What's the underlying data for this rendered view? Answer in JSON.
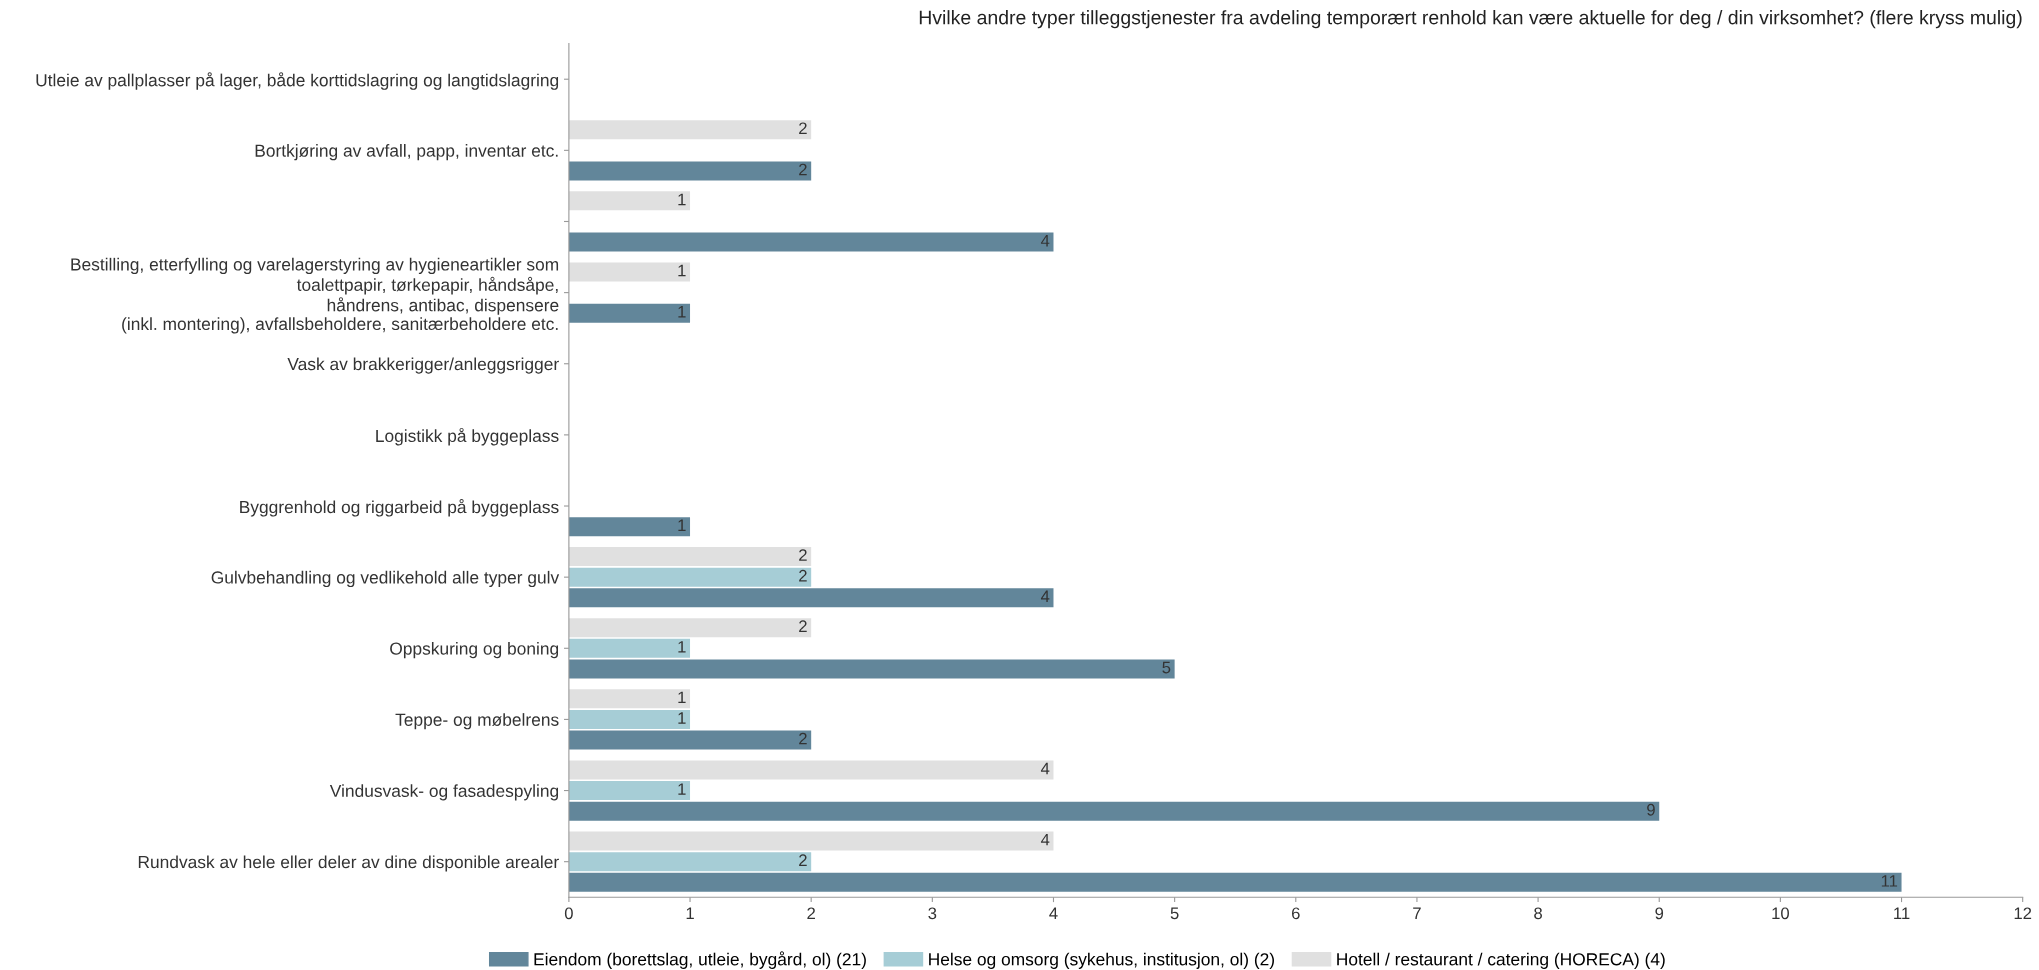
{
  "chart_data": {
    "type": "bar",
    "orientation": "horizontal",
    "title": "Hvilke andre typer tilleggstjenester fra avdeling temporært renhold kan være aktuelle for deg / din virksomhet? (flere kryss mulig)",
    "categories": [
      "Utleie av pallplasser på lager, både korttidslagring og langtidslagring",
      "Bortkjøring av avfall, papp, inventar etc.",
      null,
      "Bestilling, etterfylling og varelagerstyring av hygieneartikler som\ntoalettpapir, tørkepapir, håndsåpe,\nhåndrens, antibac, dispensere\n(inkl. montering), avfallsbeholdere, sanitærbeholdere etc.",
      "Vask av brakkerigger/anleggsrigger",
      "Logistikk på byggeplass",
      "Byggrenhold og riggarbeid på byggeplass",
      "Gulvbehandling og vedlikehold alle typer gulv",
      "Oppskuring og boning",
      "Teppe- og møbelrens",
      "Vindusvask- og fasadespyling",
      "Rundvask av hele eller deler av dine disponible arealer"
    ],
    "series": [
      {
        "name": "Eiendom (borettslag, utleie, bygård, ol) (21)",
        "color": "#62869a",
        "values": [
          null,
          2,
          4,
          1,
          null,
          null,
          1,
          4,
          5,
          2,
          9,
          11
        ]
      },
      {
        "name": "Helse og omsorg (sykehus, institusjon, ol) (2)",
        "color": "#a6cdd6",
        "values": [
          null,
          null,
          null,
          null,
          null,
          null,
          null,
          2,
          1,
          1,
          1,
          2
        ]
      },
      {
        "name": "Hotell / restaurant / catering (HORECA) (4)",
        "color": "#e0e0e0",
        "values": [
          null,
          2,
          1,
          1,
          null,
          null,
          null,
          2,
          2,
          1,
          4,
          4
        ]
      }
    ],
    "xlim": [
      0,
      12
    ],
    "xticks": [
      0,
      1,
      2,
      3,
      4,
      5,
      6,
      7,
      8,
      9,
      10,
      11,
      12
    ],
    "grid": false,
    "legend": "bottom",
    "data_labels": true
  }
}
